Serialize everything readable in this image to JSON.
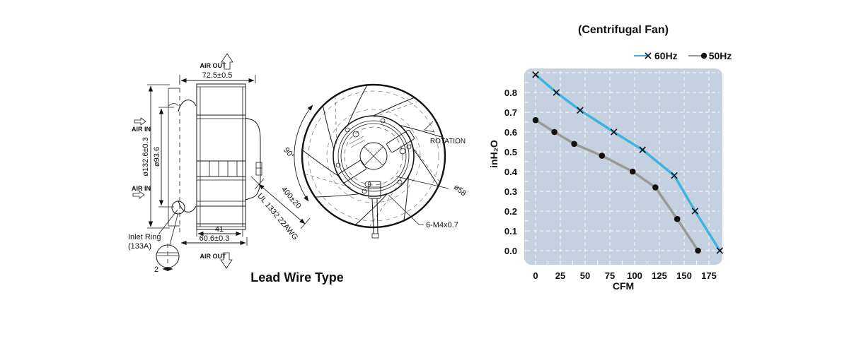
{
  "drawing": {
    "caption": "Lead Wire Type",
    "side_view": {
      "air_out_top": "AIR OUT",
      "air_out_bottom": "AIR OUT",
      "air_in_top": "AIR IN",
      "air_in_bottom": "AIR IN",
      "dim_width_top": "72.5±0.5",
      "dim_outer_diameter": "ø132.6±0.3",
      "dim_inner_diameter": "ø93.6",
      "dim_depth_inner": "41",
      "dim_depth_outer": "60.6±0.3",
      "inlet_ring_line1": "Inlet Ring",
      "inlet_ring_line2": "(133A)",
      "dim_inlet_thickness": "2"
    },
    "front_view": {
      "angle_label": "90°",
      "rotation_label": "ROTATION",
      "hub_diameter": "ø58",
      "screw_spec": "6-M4x0.7",
      "wire_length": "400±20",
      "wire_spec": "UL 1332 22AWG"
    }
  },
  "chart": {
    "colors": {
      "plot_bg": "#c5d1e1",
      "grid": "#ffffff",
      "marker": "#111111",
      "series_60hz": "#3fb2e0",
      "series_50hz": "#999999"
    }
  },
  "chart_data": {
    "type": "line",
    "title": "(Centrifugal Fan)",
    "xlabel": "CFM",
    "ylabel": "inH₂O",
    "xlim": [
      -11,
      188
    ],
    "ylim": [
      -0.07,
      0.92
    ],
    "xticks": [
      0,
      25,
      50,
      75,
      100,
      125,
      150,
      175
    ],
    "yticks": [
      0.0,
      0.1,
      0.2,
      0.3,
      0.4,
      0.5,
      0.6,
      0.7,
      0.8
    ],
    "ygridlines": [
      0.0,
      0.1,
      0.2,
      0.3,
      0.4,
      0.5,
      0.6,
      0.7,
      0.8,
      0.9
    ],
    "grid": true,
    "legend_position": "top-right-outside",
    "series": [
      {
        "name": "60Hz",
        "marker": "x",
        "color": "#3fb2e0",
        "points": [
          [
            0,
            0.89
          ],
          [
            21,
            0.8
          ],
          [
            45,
            0.71
          ],
          [
            79,
            0.6
          ],
          [
            108,
            0.51
          ],
          [
            140,
            0.38
          ],
          [
            161,
            0.2
          ],
          [
            186,
            0.0
          ]
        ]
      },
      {
        "name": "50Hz",
        "marker": "dot",
        "color": "#999999",
        "points": [
          [
            0,
            0.66
          ],
          [
            19,
            0.6
          ],
          [
            39,
            0.54
          ],
          [
            67,
            0.48
          ],
          [
            98,
            0.4
          ],
          [
            121,
            0.32
          ],
          [
            143,
            0.16
          ],
          [
            164,
            0.0
          ]
        ]
      }
    ]
  }
}
